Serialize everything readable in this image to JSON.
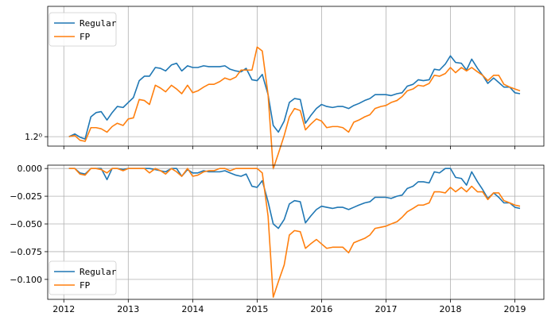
{
  "chart_data": [
    {
      "type": "line",
      "y_scale": "log",
      "xlim": [
        2011.75,
        2019.45
      ],
      "ylim": [
        0.96,
        1.76
      ],
      "grid": true,
      "legend_position": "upper-left",
      "y_ticks": [
        {
          "value": 1.0,
          "label": "1.2⁰"
        }
      ],
      "x": [
        2012.08,
        2012.17,
        2012.25,
        2012.33,
        2012.42,
        2012.5,
        2012.58,
        2012.67,
        2012.75,
        2012.83,
        2012.92,
        2013.0,
        2013.08,
        2013.17,
        2013.25,
        2013.33,
        2013.42,
        2013.5,
        2013.58,
        2013.67,
        2013.75,
        2013.83,
        2013.92,
        2014.0,
        2014.08,
        2014.17,
        2014.25,
        2014.33,
        2014.42,
        2014.5,
        2014.58,
        2014.67,
        2014.75,
        2014.83,
        2014.92,
        2015.0,
        2015.08,
        2015.17,
        2015.25,
        2015.33,
        2015.42,
        2015.5,
        2015.58,
        2015.67,
        2015.75,
        2015.83,
        2015.92,
        2016.0,
        2016.08,
        2016.17,
        2016.25,
        2016.33,
        2016.42,
        2016.5,
        2016.58,
        2016.67,
        2016.75,
        2016.83,
        2016.92,
        2017.0,
        2017.08,
        2017.17,
        2017.25,
        2017.33,
        2017.42,
        2017.5,
        2017.58,
        2017.67,
        2017.75,
        2017.83,
        2017.92,
        2018.0,
        2018.08,
        2018.17,
        2018.25,
        2018.33,
        2018.42,
        2018.5,
        2018.58,
        2018.67,
        2018.75,
        2018.83,
        2018.92,
        2019.0,
        2019.08
      ],
      "series": [
        {
          "name": "Regular",
          "color": "#1f77b4",
          "values": [
            1.0,
            1.012,
            0.998,
            0.99,
            1.09,
            1.11,
            1.115,
            1.075,
            1.11,
            1.14,
            1.135,
            1.16,
            1.185,
            1.275,
            1.3,
            1.3,
            1.35,
            1.345,
            1.33,
            1.365,
            1.375,
            1.33,
            1.36,
            1.35,
            1.35,
            1.36,
            1.355,
            1.355,
            1.355,
            1.36,
            1.34,
            1.33,
            1.325,
            1.345,
            1.28,
            1.275,
            1.31,
            1.2,
            1.05,
            1.02,
            1.07,
            1.16,
            1.18,
            1.175,
            1.06,
            1.095,
            1.13,
            1.15,
            1.14,
            1.135,
            1.14,
            1.14,
            1.13,
            1.145,
            1.155,
            1.17,
            1.18,
            1.2,
            1.2,
            1.2,
            1.195,
            1.205,
            1.21,
            1.245,
            1.255,
            1.28,
            1.275,
            1.28,
            1.34,
            1.335,
            1.37,
            1.42,
            1.38,
            1.375,
            1.335,
            1.4,
            1.345,
            1.305,
            1.26,
            1.29,
            1.265,
            1.24,
            1.24,
            1.21,
            1.205
          ]
        },
        {
          "name": "FP",
          "color": "#ff7f0e",
          "values": [
            1.0,
            1.005,
            0.985,
            0.98,
            1.04,
            1.04,
            1.035,
            1.02,
            1.045,
            1.06,
            1.05,
            1.08,
            1.085,
            1.175,
            1.17,
            1.15,
            1.25,
            1.235,
            1.215,
            1.25,
            1.23,
            1.205,
            1.25,
            1.21,
            1.22,
            1.24,
            1.255,
            1.255,
            1.27,
            1.29,
            1.28,
            1.295,
            1.335,
            1.335,
            1.335,
            1.475,
            1.45,
            1.2,
            0.87,
            0.93,
            1.005,
            1.09,
            1.13,
            1.12,
            1.03,
            1.055,
            1.08,
            1.07,
            1.04,
            1.045,
            1.045,
            1.04,
            1.02,
            1.065,
            1.075,
            1.09,
            1.1,
            1.13,
            1.14,
            1.145,
            1.16,
            1.17,
            1.19,
            1.22,
            1.23,
            1.25,
            1.245,
            1.26,
            1.305,
            1.3,
            1.315,
            1.35,
            1.32,
            1.35,
            1.33,
            1.35,
            1.325,
            1.305,
            1.275,
            1.305,
            1.305,
            1.255,
            1.24,
            1.23,
            1.22
          ]
        }
      ]
    },
    {
      "type": "line",
      "xlim": [
        2011.75,
        2019.45
      ],
      "ylim": [
        -0.118,
        0.003
      ],
      "grid": true,
      "legend_position": "lower-left",
      "y_ticks": [
        {
          "value": 0.0,
          "label": "0.000"
        },
        {
          "value": -0.025,
          "label": "−0.025"
        },
        {
          "value": -0.05,
          "label": "−0.050"
        },
        {
          "value": -0.075,
          "label": "−0.075"
        },
        {
          "value": -0.1,
          "label": "−0.100"
        }
      ],
      "x_ticks": [
        {
          "value": 2012,
          "label": "2012"
        },
        {
          "value": 2013,
          "label": "2013"
        },
        {
          "value": 2014,
          "label": "2014"
        },
        {
          "value": 2015,
          "label": "2015"
        },
        {
          "value": 2016,
          "label": "2016"
        },
        {
          "value": 2017,
          "label": "2017"
        },
        {
          "value": 2018,
          "label": "2018"
        },
        {
          "value": 2019,
          "label": "2019"
        }
      ],
      "x": [
        2012.08,
        2012.17,
        2012.25,
        2012.33,
        2012.42,
        2012.5,
        2012.58,
        2012.67,
        2012.75,
        2012.83,
        2012.92,
        2013.0,
        2013.08,
        2013.17,
        2013.25,
        2013.33,
        2013.42,
        2013.5,
        2013.58,
        2013.67,
        2013.75,
        2013.83,
        2013.92,
        2014.0,
        2014.08,
        2014.17,
        2014.25,
        2014.33,
        2014.42,
        2014.5,
        2014.58,
        2014.67,
        2014.75,
        2014.83,
        2014.92,
        2015.0,
        2015.08,
        2015.17,
        2015.25,
        2015.33,
        2015.42,
        2015.5,
        2015.58,
        2015.67,
        2015.75,
        2015.83,
        2015.92,
        2016.0,
        2016.08,
        2016.17,
        2016.25,
        2016.33,
        2016.42,
        2016.5,
        2016.58,
        2016.67,
        2016.75,
        2016.83,
        2016.92,
        2017.0,
        2017.08,
        2017.17,
        2017.25,
        2017.33,
        2017.42,
        2017.5,
        2017.58,
        2017.67,
        2017.75,
        2017.83,
        2017.92,
        2018.0,
        2018.08,
        2018.17,
        2018.25,
        2018.33,
        2018.42,
        2018.5,
        2018.58,
        2018.67,
        2018.75,
        2018.83,
        2018.92,
        2019.0,
        2019.08
      ],
      "series": [
        {
          "name": "Regular",
          "color": "#1f77b4",
          "values": [
            0.0,
            0.0,
            -0.004,
            -0.005,
            0.0,
            0.0,
            0.0,
            -0.01,
            0.0,
            0.0,
            -0.001,
            0.0,
            0.0,
            0.0,
            0.0,
            0.0,
            -0.001,
            -0.002,
            -0.003,
            0.0,
            0.0,
            -0.007,
            -0.001,
            -0.004,
            -0.004,
            -0.002,
            -0.003,
            -0.003,
            -0.003,
            -0.002,
            -0.004,
            -0.006,
            -0.007,
            -0.005,
            -0.016,
            -0.017,
            -0.011,
            -0.03,
            -0.05,
            -0.054,
            -0.046,
            -0.032,
            -0.029,
            -0.03,
            -0.049,
            -0.043,
            -0.037,
            -0.034,
            -0.035,
            -0.036,
            -0.035,
            -0.035,
            -0.037,
            -0.035,
            -0.033,
            -0.031,
            -0.03,
            -0.026,
            -0.026,
            -0.026,
            -0.027,
            -0.025,
            -0.024,
            -0.018,
            -0.016,
            -0.012,
            -0.012,
            -0.013,
            -0.003,
            -0.004,
            0.0,
            0.0,
            -0.008,
            -0.009,
            -0.015,
            -0.003,
            -0.012,
            -0.019,
            -0.027,
            -0.022,
            -0.026,
            -0.031,
            -0.031,
            -0.035,
            -0.036
          ]
        },
        {
          "name": "FP",
          "color": "#ff7f0e",
          "values": [
            0.0,
            0.0,
            -0.005,
            -0.006,
            0.0,
            0.0,
            -0.001,
            -0.004,
            0.0,
            0.0,
            -0.002,
            0.0,
            0.0,
            0.0,
            0.0,
            -0.004,
            0.0,
            -0.002,
            -0.005,
            0.0,
            -0.003,
            -0.007,
            0.0,
            -0.007,
            -0.006,
            -0.003,
            -0.002,
            -0.002,
            0.0,
            0.0,
            -0.002,
            0.0,
            0.0,
            0.0,
            0.0,
            0.0,
            -0.004,
            -0.043,
            -0.116,
            -0.102,
            -0.087,
            -0.06,
            -0.056,
            -0.057,
            -0.072,
            -0.068,
            -0.064,
            -0.068,
            -0.072,
            -0.071,
            -0.071,
            -0.071,
            -0.076,
            -0.067,
            -0.065,
            -0.063,
            -0.06,
            -0.054,
            -0.053,
            -0.052,
            -0.05,
            -0.048,
            -0.044,
            -0.039,
            -0.036,
            -0.033,
            -0.033,
            -0.031,
            -0.021,
            -0.021,
            -0.022,
            -0.017,
            -0.021,
            -0.017,
            -0.021,
            -0.016,
            -0.021,
            -0.021,
            -0.028,
            -0.022,
            -0.022,
            -0.029,
            -0.031,
            -0.033,
            -0.034
          ]
        }
      ]
    }
  ]
}
